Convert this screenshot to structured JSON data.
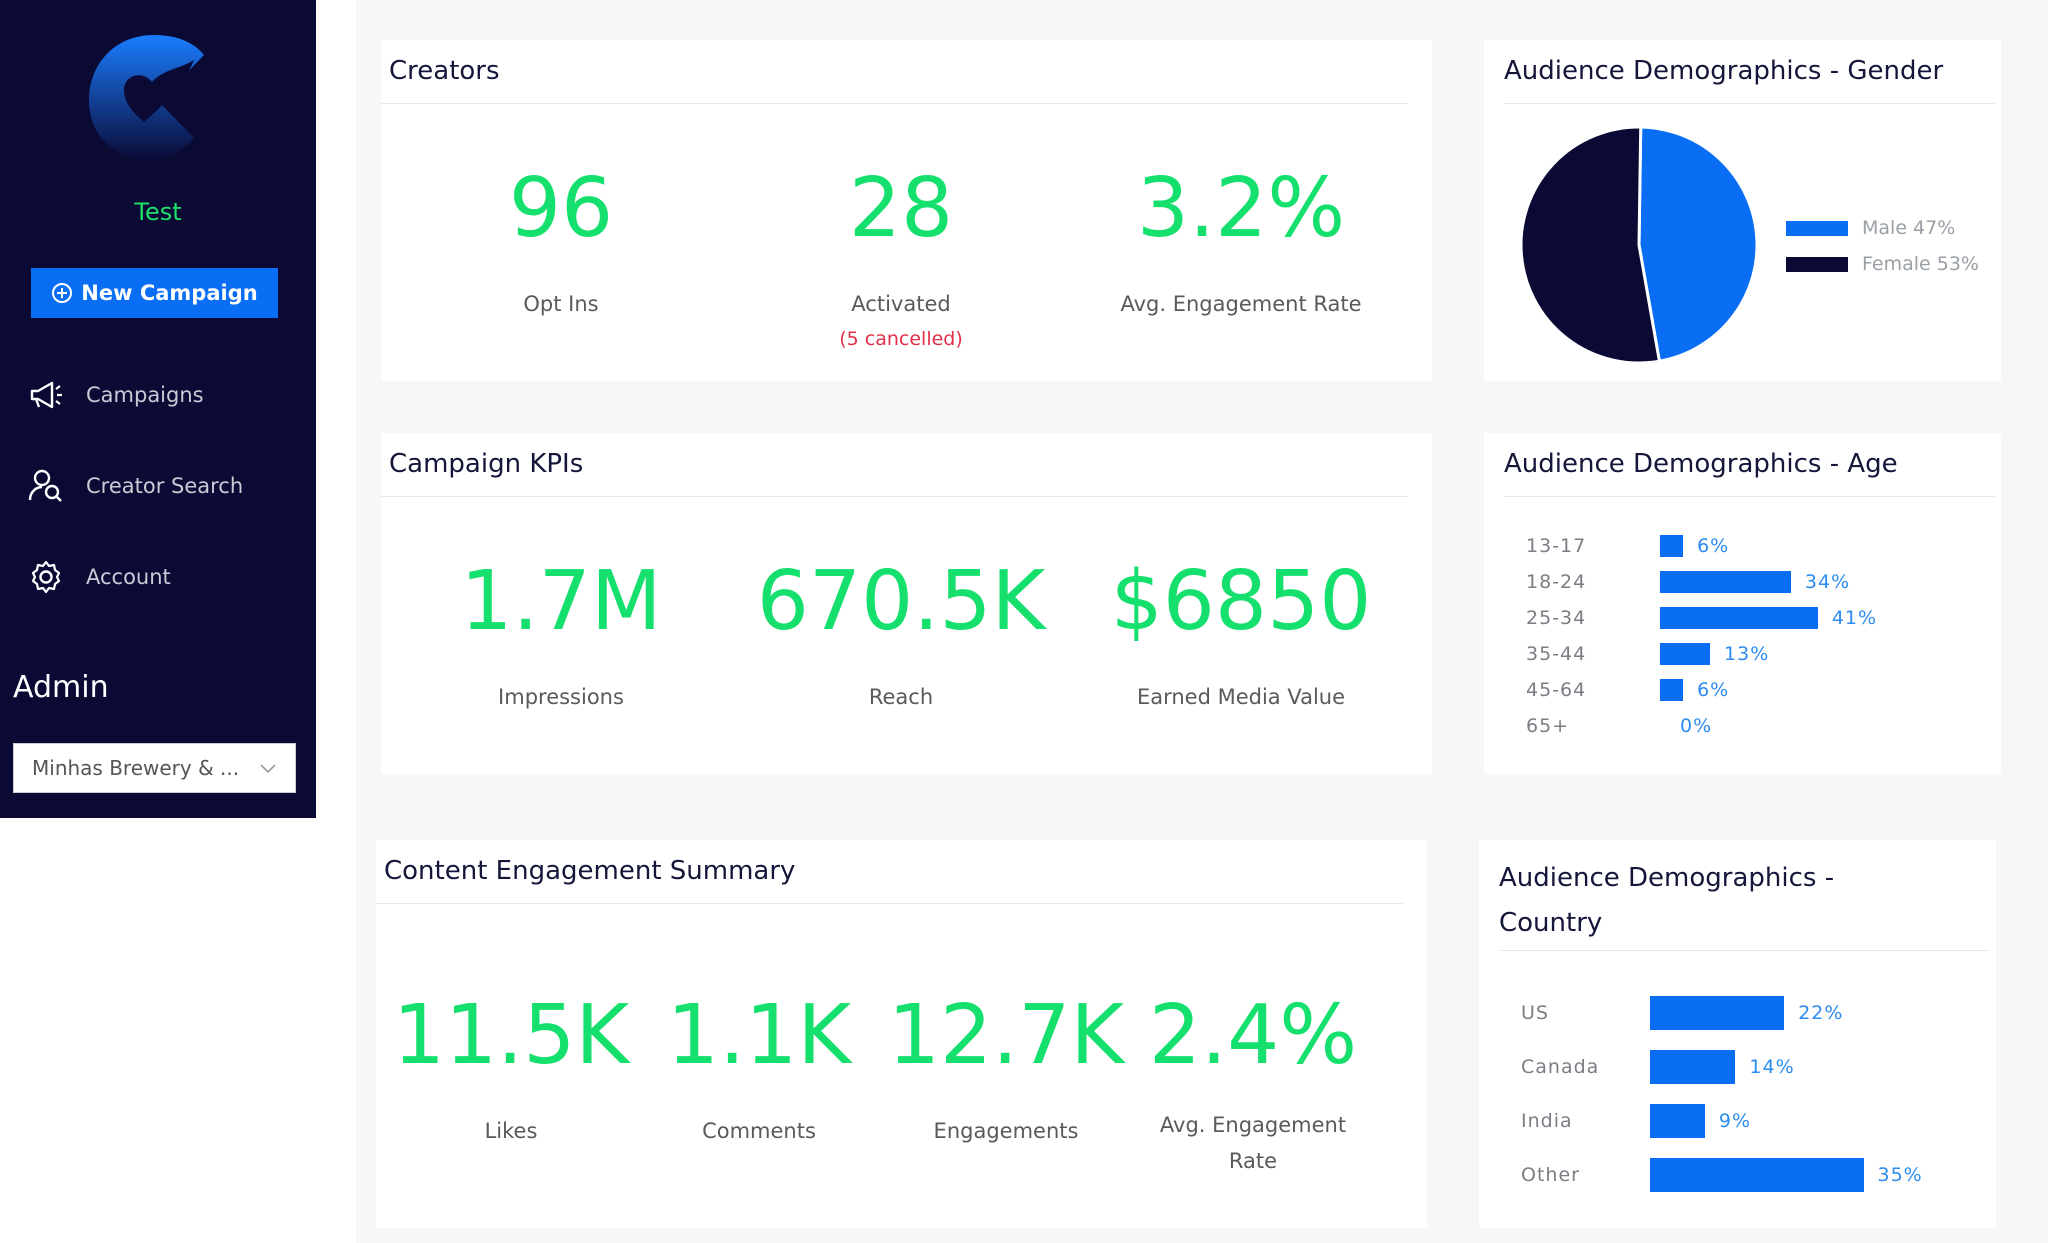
{
  "sidebar": {
    "brand_name": "Test",
    "new_campaign_label": "New Campaign",
    "nav": [
      {
        "label": "Campaigns",
        "icon": "megaphone-icon"
      },
      {
        "label": "Creator Search",
        "icon": "user-search-icon"
      },
      {
        "label": "Account",
        "icon": "gear-icon"
      }
    ],
    "admin_label": "Admin",
    "org_select_value": "Minhas Brewery & ..."
  },
  "colors": {
    "sidebar_bg": "#0b0a35",
    "accent_blue": "#0a6ef5",
    "metric_green": "#16e06d",
    "alert_red": "#e0304a",
    "navy": "#0b0a35"
  },
  "creators": {
    "title": "Creators",
    "stats": [
      {
        "value": "96",
        "label": "Opt Ins"
      },
      {
        "value": "28",
        "label": "Activated",
        "note": "(5 cancelled)"
      },
      {
        "value": "3.2%",
        "label": "Avg. Engagement Rate"
      }
    ]
  },
  "campaign_kpis": {
    "title": "Campaign KPIs",
    "stats": [
      {
        "value": "1.7M",
        "label": "Impressions"
      },
      {
        "value": "670.5K",
        "label": "Reach"
      },
      {
        "value": "$6850",
        "label": "Earned Media Value"
      }
    ]
  },
  "content_engagement": {
    "title": "Content Engagement Summary",
    "stats": [
      {
        "value": "11.5K",
        "label": "Likes"
      },
      {
        "value": "1.1K",
        "label": "Comments"
      },
      {
        "value": "12.7K",
        "label": "Engagements"
      },
      {
        "value": "2.4%",
        "label": "Avg. Engagement Rate"
      }
    ]
  },
  "gender": {
    "title": "Audience Demographics - Gender",
    "legend": [
      "Male 47%",
      "Female 53%"
    ]
  },
  "age": {
    "title": "Audience Demographics - Age",
    "value_labels": [
      "6%",
      "34%",
      "41%",
      "13%",
      "6%",
      "0%"
    ]
  },
  "country": {
    "title": "Audience Demographics - Country",
    "value_labels": [
      "22%",
      "14%",
      "9%",
      "35%"
    ]
  },
  "chart_data": [
    {
      "type": "pie",
      "title": "Audience Demographics - Gender",
      "categories": [
        "Male",
        "Female"
      ],
      "values": [
        47,
        53
      ],
      "colors": [
        "#0a6ef5",
        "#0b0a35"
      ],
      "legend": "right"
    },
    {
      "type": "bar",
      "orientation": "horizontal",
      "title": "Audience Demographics - Age",
      "categories": [
        "13-17",
        "18-24",
        "25-34",
        "35-44",
        "45-64",
        "65+"
      ],
      "values": [
        6,
        34,
        41,
        13,
        6,
        0
      ],
      "xlim": [
        0,
        100
      ],
      "color": "#0a6ef5"
    },
    {
      "type": "bar",
      "orientation": "horizontal",
      "title": "Audience Demographics - Country",
      "categories": [
        "US",
        "Canada",
        "India",
        "Other"
      ],
      "values": [
        22,
        14,
        9,
        35
      ],
      "xlim": [
        0,
        100
      ],
      "color": "#0a6ef5"
    }
  ]
}
